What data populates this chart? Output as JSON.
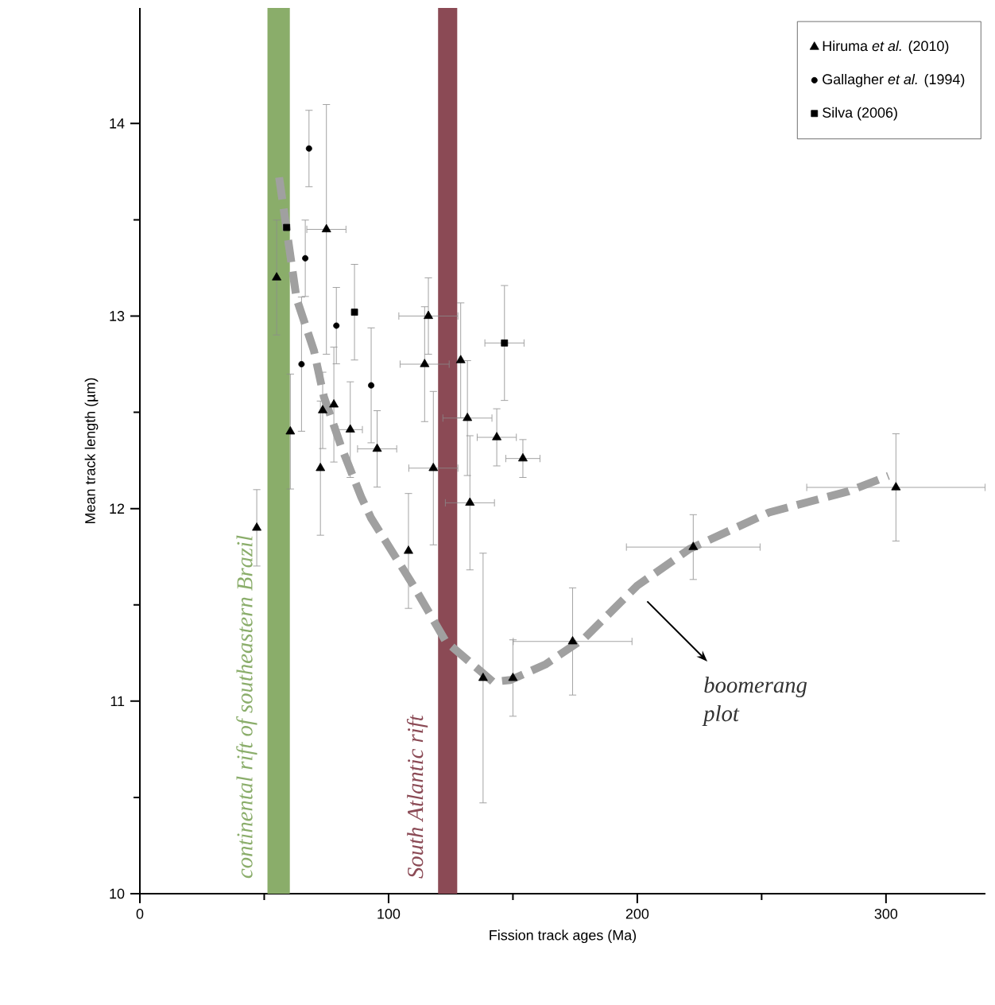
{
  "chart_data": {
    "type": "scatter",
    "xlabel": "Fission track ages (Ma)",
    "ylabel": "Mean track length (µm)",
    "xlim": [
      0,
      340
    ],
    "ylim": [
      10,
      14.6
    ],
    "xticks": [
      0,
      100,
      200,
      300
    ],
    "yticks": [
      10,
      11,
      12,
      13,
      14
    ],
    "legend": "top right",
    "grid": false,
    "bands": [
      {
        "axis": "x",
        "from": 51.3,
        "to": 60.3,
        "label": "continental rift of southeastern Brazil",
        "color": "#8aad6a"
      },
      {
        "axis": "x",
        "from": 119.9,
        "to": 127.6,
        "label": "South Atlantic rift",
        "color": "#8b4a55"
      }
    ],
    "annotations": [
      "boomerang plot"
    ],
    "series": [
      {
        "name": "Hiruma *et al.* (2010)",
        "marker": "triangle",
        "color": "#000000",
        "x": [
          47,
          55,
          60.5,
          72.6,
          73.5,
          75,
          78,
          84.6,
          95.4,
          108,
          114.5,
          116,
          118,
          129,
          131.7,
          132.7,
          138,
          143.5,
          150,
          154,
          174,
          222.5,
          304
        ],
        "values": [
          11.9,
          13.2,
          12.4,
          12.21,
          12.51,
          13.45,
          12.54,
          12.41,
          12.31,
          11.78,
          12.75,
          13.0,
          12.21,
          12.77,
          12.47,
          12.03,
          11.12,
          12.37,
          11.12,
          12.26,
          11.31,
          11.8,
          12.11
        ],
        "errors": [
          0.2,
          0.3,
          0.3,
          0.35,
          0.2,
          0.65,
          0.3,
          0.25,
          0.2,
          0.3,
          0.3,
          0.2,
          0.4,
          0.3,
          0.3,
          0.35,
          0.65,
          0.15,
          0.2,
          0.1,
          0.28,
          0.17,
          0.28
        ],
        "xerrors": [
          null,
          null,
          null,
          null,
          null,
          8,
          null,
          5,
          8,
          null,
          10,
          12,
          10,
          null,
          10,
          10,
          null,
          8,
          null,
          7,
          24,
          27,
          36
        ]
      },
      {
        "name": "Gallagher *et al.* (1994)",
        "marker": "circle",
        "color": "#000000",
        "x": [
          65,
          66.5,
          68,
          79,
          93
        ],
        "values": [
          12.75,
          13.3,
          13.87,
          12.95,
          12.64
        ],
        "errors": [
          0.35,
          0.2,
          0.2,
          0.2,
          0.3
        ],
        "xerrors": [
          null,
          null,
          null,
          null,
          null
        ]
      },
      {
        "name": "Silva (2006)",
        "marker": "square",
        "color": "#000000",
        "x": [
          59,
          86.3,
          146.6
        ],
        "values": [
          13.46,
          13.02,
          12.86
        ],
        "errors": [
          null,
          0.25,
          0.3
        ],
        "xerrors": [
          null,
          null,
          8
        ]
      },
      {
        "type": "line",
        "color": "#a0a0a0",
        "line_style": "dashed",
        "marker": "none",
        "x": [
          56,
          63,
          70,
          74,
          81,
          89,
          93,
          110,
          123,
          142,
          149,
          163,
          179,
          200,
          221,
          253,
          285,
          301
        ],
        "values": [
          13.72,
          13.09,
          12.82,
          12.58,
          12.32,
          12.06,
          11.95,
          11.6,
          11.31,
          11.1,
          11.11,
          11.19,
          11.33,
          11.6,
          11.79,
          11.98,
          12.09,
          12.17
        ]
      }
    ]
  }
}
